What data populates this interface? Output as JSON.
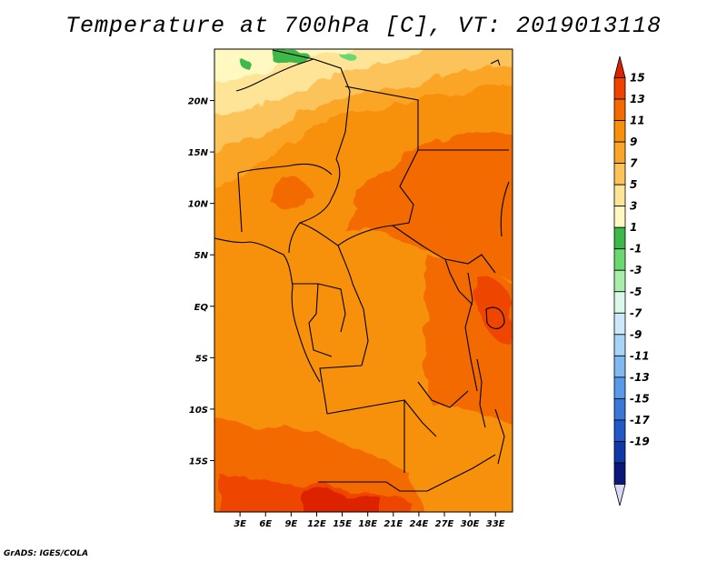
{
  "title": "Temperature at 700hPa [C], VT: 2019013118",
  "credit": "GrADS: IGES/COLA",
  "map": {
    "lat_range": [
      -20,
      25
    ],
    "lon_range": [
      0,
      35
    ],
    "lat_ticks": [
      {
        "value": 20,
        "label": "20N"
      },
      {
        "value": 15,
        "label": "15N"
      },
      {
        "value": 10,
        "label": "10N"
      },
      {
        "value": 5,
        "label": "5N"
      },
      {
        "value": 0,
        "label": "EQ"
      },
      {
        "value": -5,
        "label": "5S"
      },
      {
        "value": -10,
        "label": "10S"
      },
      {
        "value": -15,
        "label": "15S"
      }
    ],
    "lon_ticks": [
      {
        "value": 3,
        "label": "3E"
      },
      {
        "value": 6,
        "label": "6E"
      },
      {
        "value": 9,
        "label": "9E"
      },
      {
        "value": 12,
        "label": "12E"
      },
      {
        "value": 15,
        "label": "15E"
      },
      {
        "value": 18,
        "label": "18E"
      },
      {
        "value": 21,
        "label": "21E"
      },
      {
        "value": 24,
        "label": "24E"
      },
      {
        "value": 27,
        "label": "27E"
      },
      {
        "value": 30,
        "label": "30E"
      },
      {
        "value": 33,
        "label": "33E"
      }
    ]
  },
  "colorbar": {
    "labels": [
      "15",
      "13",
      "11",
      "9",
      "7",
      "5",
      "3",
      "1",
      "-1",
      "-3",
      "-5",
      "-7",
      "-9",
      "-11",
      "-13",
      "-15",
      "-17",
      "-19"
    ],
    "colors": [
      "#dd2200",
      "#ee4400",
      "#f26a00",
      "#f7900a",
      "#faa528",
      "#fcc35a",
      "#fde496",
      "#fff8c0",
      "#3cb84a",
      "#6ad870",
      "#a8eeaa",
      "#dcf8e8",
      "#cce8fa",
      "#a8d4f8",
      "#80b8f0",
      "#5a98e8",
      "#3a78d8",
      "#2258c8",
      "#1038a8",
      "#0a1878",
      "#d8d8f8"
    ],
    "units": "C"
  }
}
